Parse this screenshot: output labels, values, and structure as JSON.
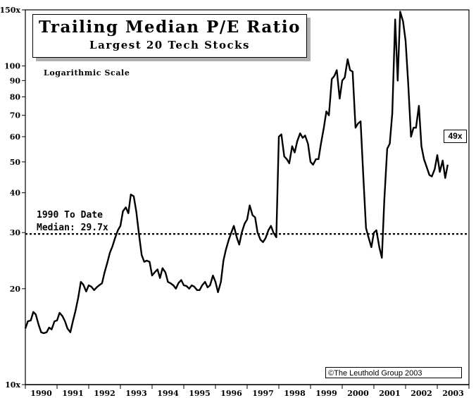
{
  "chart_data": {
    "type": "line",
    "title": "Trailing Median P/E Ratio",
    "subtitle": "Largest 20 Tech Stocks",
    "scale_note": "Logarithmic Scale",
    "yscale": "log",
    "ylim": [
      10,
      150
    ],
    "yticks": [
      {
        "value": 10,
        "label": "10x"
      },
      {
        "value": 20,
        "label": "20"
      },
      {
        "value": 30,
        "label": "30"
      },
      {
        "value": 40,
        "label": "40"
      },
      {
        "value": 50,
        "label": "50"
      },
      {
        "value": 60,
        "label": "60"
      },
      {
        "value": 70,
        "label": "70"
      },
      {
        "value": 80,
        "label": "80"
      },
      {
        "value": 90,
        "label": "90"
      },
      {
        "value": 100,
        "label": "100"
      },
      {
        "value": 150,
        "label": "150x"
      }
    ],
    "xlim": [
      1990,
      2004
    ],
    "xticks": [
      "1990",
      "1991",
      "1992",
      "1993",
      "1994",
      "1995",
      "1996",
      "1997",
      "1998",
      "1999",
      "2000",
      "2001",
      "2002",
      "2003"
    ],
    "median": {
      "value": 29.7,
      "label_line1": "1990 To Date",
      "label_line2": "Median: 29.7x"
    },
    "end_label": "49x",
    "copyright": "©The Leuthold Group 2003",
    "series": [
      {
        "name": "Median P/E",
        "points": [
          [
            1990.0,
            15.0
          ],
          [
            1990.08,
            15.8
          ],
          [
            1990.17,
            15.9
          ],
          [
            1990.25,
            16.9
          ],
          [
            1990.33,
            16.6
          ],
          [
            1990.42,
            15.4
          ],
          [
            1990.5,
            14.6
          ],
          [
            1990.58,
            14.5
          ],
          [
            1990.67,
            14.6
          ],
          [
            1990.75,
            15.1
          ],
          [
            1990.83,
            14.9
          ],
          [
            1990.92,
            15.8
          ],
          [
            1991.0,
            15.9
          ],
          [
            1991.08,
            16.8
          ],
          [
            1991.17,
            16.4
          ],
          [
            1991.25,
            15.8
          ],
          [
            1991.33,
            15.0
          ],
          [
            1991.42,
            14.6
          ],
          [
            1991.5,
            15.8
          ],
          [
            1991.58,
            17.0
          ],
          [
            1991.67,
            18.8
          ],
          [
            1991.75,
            21.0
          ],
          [
            1991.83,
            20.6
          ],
          [
            1991.92,
            19.6
          ],
          [
            1992.0,
            20.5
          ],
          [
            1992.08,
            20.3
          ],
          [
            1992.17,
            19.8
          ],
          [
            1992.25,
            20.2
          ],
          [
            1992.33,
            20.5
          ],
          [
            1992.42,
            20.8
          ],
          [
            1992.5,
            22.5
          ],
          [
            1992.58,
            24.0
          ],
          [
            1992.67,
            26.0
          ],
          [
            1992.75,
            27.2
          ],
          [
            1992.83,
            28.8
          ],
          [
            1992.92,
            30.5
          ],
          [
            1993.0,
            31.5
          ],
          [
            1993.08,
            35.0
          ],
          [
            1993.17,
            36.0
          ],
          [
            1993.25,
            34.5
          ],
          [
            1993.33,
            39.5
          ],
          [
            1993.42,
            39.0
          ],
          [
            1993.5,
            35.0
          ],
          [
            1993.58,
            30.0
          ],
          [
            1993.67,
            25.5
          ],
          [
            1993.75,
            24.3
          ],
          [
            1993.83,
            24.5
          ],
          [
            1993.92,
            24.3
          ],
          [
            1994.0,
            22.0
          ],
          [
            1994.08,
            22.5
          ],
          [
            1994.17,
            23.0
          ],
          [
            1994.25,
            21.6
          ],
          [
            1994.33,
            23.2
          ],
          [
            1994.42,
            22.5
          ],
          [
            1994.5,
            21.0
          ],
          [
            1994.58,
            20.8
          ],
          [
            1994.67,
            20.5
          ],
          [
            1994.75,
            20.0
          ],
          [
            1994.83,
            20.8
          ],
          [
            1994.92,
            21.3
          ],
          [
            1995.0,
            20.5
          ],
          [
            1995.08,
            20.4
          ],
          [
            1995.17,
            20.0
          ],
          [
            1995.25,
            20.5
          ],
          [
            1995.33,
            20.3
          ],
          [
            1995.42,
            19.8
          ],
          [
            1995.5,
            19.8
          ],
          [
            1995.58,
            20.5
          ],
          [
            1995.67,
            21.0
          ],
          [
            1995.75,
            20.2
          ],
          [
            1995.83,
            20.5
          ],
          [
            1995.92,
            22.0
          ],
          [
            1996.0,
            21.0
          ],
          [
            1996.08,
            19.5
          ],
          [
            1996.17,
            21.0
          ],
          [
            1996.25,
            24.5
          ],
          [
            1996.33,
            26.5
          ],
          [
            1996.42,
            28.5
          ],
          [
            1996.5,
            30.0
          ],
          [
            1996.58,
            31.5
          ],
          [
            1996.67,
            29.0
          ],
          [
            1996.75,
            27.5
          ],
          [
            1996.83,
            30.0
          ],
          [
            1996.92,
            32.0
          ],
          [
            1997.0,
            33.0
          ],
          [
            1997.08,
            36.5
          ],
          [
            1997.17,
            34.0
          ],
          [
            1997.25,
            33.5
          ],
          [
            1997.33,
            30.0
          ],
          [
            1997.42,
            28.5
          ],
          [
            1997.5,
            28.0
          ],
          [
            1997.58,
            28.8
          ],
          [
            1997.67,
            30.5
          ],
          [
            1997.75,
            31.5
          ],
          [
            1997.83,
            30.0
          ],
          [
            1997.92,
            29.0
          ],
          [
            1998.0,
            60.0
          ],
          [
            1998.08,
            61.0
          ],
          [
            1998.17,
            52.0
          ],
          [
            1998.25,
            51.0
          ],
          [
            1998.33,
            49.5
          ],
          [
            1998.42,
            56.0
          ],
          [
            1998.5,
            53.5
          ],
          [
            1998.58,
            58.0
          ],
          [
            1998.67,
            61.5
          ],
          [
            1998.75,
            59.5
          ],
          [
            1998.83,
            60.5
          ],
          [
            1998.92,
            57.0
          ],
          [
            1999.0,
            50.0
          ],
          [
            1999.08,
            49.0
          ],
          [
            1999.17,
            51.0
          ],
          [
            1999.25,
            51.0
          ],
          [
            1999.33,
            57.0
          ],
          [
            1999.42,
            64.0
          ],
          [
            1999.5,
            72.0
          ],
          [
            1999.58,
            70.0
          ],
          [
            1999.67,
            91.0
          ],
          [
            1999.75,
            93.0
          ],
          [
            1999.83,
            97.0
          ],
          [
            1999.92,
            79.0
          ],
          [
            2000.0,
            90.0
          ],
          [
            2000.08,
            92.0
          ],
          [
            2000.17,
            105.0
          ],
          [
            2000.25,
            97.0
          ],
          [
            2000.33,
            96.0
          ],
          [
            2000.42,
            64.0
          ],
          [
            2000.5,
            66.0
          ],
          [
            2000.58,
            67.0
          ],
          [
            2000.67,
            44.0
          ],
          [
            2000.75,
            31.0
          ],
          [
            2000.83,
            29.0
          ],
          [
            2000.92,
            27.0
          ],
          [
            2001.0,
            30.0
          ],
          [
            2001.08,
            30.5
          ],
          [
            2001.17,
            27.0
          ],
          [
            2001.25,
            25.0
          ],
          [
            2001.33,
            38.0
          ],
          [
            2001.42,
            55.0
          ],
          [
            2001.5,
            57.0
          ],
          [
            2001.58,
            71.0
          ],
          [
            2001.67,
            140.0
          ],
          [
            2001.75,
            90.0
          ],
          [
            2001.83,
            148.0
          ],
          [
            2001.92,
            138.0
          ],
          [
            2002.0,
            120.0
          ],
          [
            2002.08,
            89.0
          ],
          [
            2002.17,
            60.0
          ],
          [
            2002.25,
            64.0
          ],
          [
            2002.33,
            64.0
          ],
          [
            2002.42,
            75.0
          ],
          [
            2002.5,
            56.0
          ],
          [
            2002.58,
            51.0
          ],
          [
            2002.67,
            48.0
          ],
          [
            2002.75,
            45.5
          ],
          [
            2002.83,
            45.0
          ],
          [
            2002.92,
            47.5
          ],
          [
            2003.0,
            52.5
          ],
          [
            2003.08,
            46.5
          ],
          [
            2003.17,
            50.5
          ],
          [
            2003.25,
            44.5
          ],
          [
            2003.33,
            49.0
          ]
        ]
      }
    ]
  }
}
